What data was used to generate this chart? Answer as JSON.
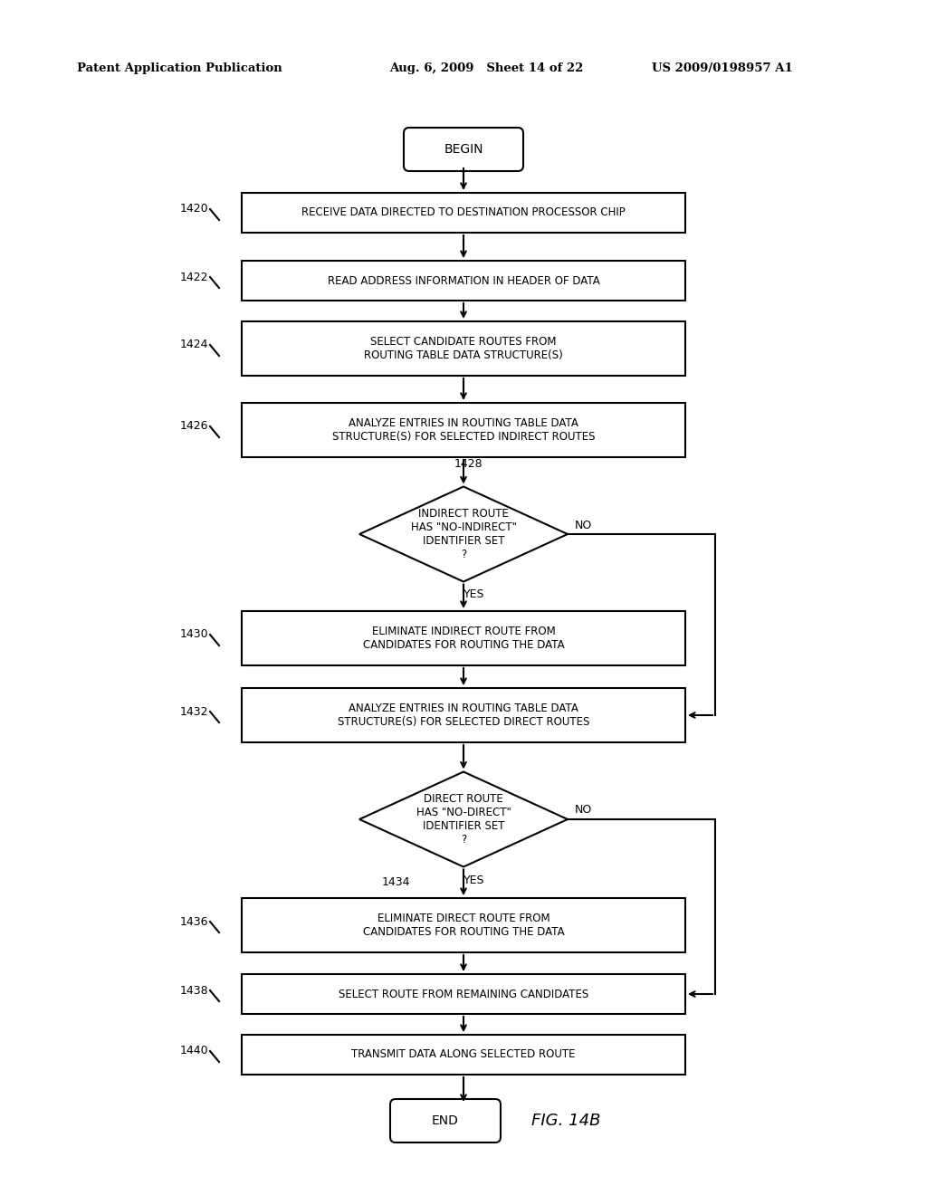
{
  "title_left": "Patent Application Publication",
  "title_mid": "Aug. 6, 2009   Sheet 14 of 22",
  "title_right": "US 2009/0198957 A1",
  "fig_label": "FIG. 14B",
  "bg_color": "#ffffff",
  "nodes": {
    "begin": {
      "label": "BEGIN"
    },
    "1420": {
      "label": "RECEIVE DATA DIRECTED TO DESTINATION PROCESSOR CHIP"
    },
    "1422": {
      "label": "READ ADDRESS INFORMATION IN HEADER OF DATA"
    },
    "1424": {
      "label": "SELECT CANDIDATE ROUTES FROM\nROUTING TABLE DATA STRUCTURE(S)"
    },
    "1426": {
      "label": "ANALYZE ENTRIES IN ROUTING TABLE DATA\nSTRUCTURE(S) FOR SELECTED INDIRECT ROUTES"
    },
    "1428": {
      "label": "INDIRECT ROUTE\nHAS \"NO-INDIRECT\"\nIDENTIFIER SET\n?"
    },
    "1430": {
      "label": "ELIMINATE INDIRECT ROUTE FROM\nCANDIDATES FOR ROUTING THE DATA"
    },
    "1432": {
      "label": "ANALYZE ENTRIES IN ROUTING TABLE DATA\nSTRUCTURE(S) FOR SELECTED DIRECT ROUTES"
    },
    "1434": {
      "label": "DIRECT ROUTE\nHAS \"NO-DIRECT\"\nIDENTIFIER SET\n?"
    },
    "1436": {
      "label": "ELIMINATE DIRECT ROUTE FROM\nCANDIDATES FOR ROUTING THE DATA"
    },
    "1438": {
      "label": "SELECT ROUTE FROM REMAINING CANDIDATES"
    },
    "1440": {
      "label": "TRANSMIT DATA ALONG SELECTED ROUTE"
    },
    "end": {
      "label": "END"
    }
  }
}
